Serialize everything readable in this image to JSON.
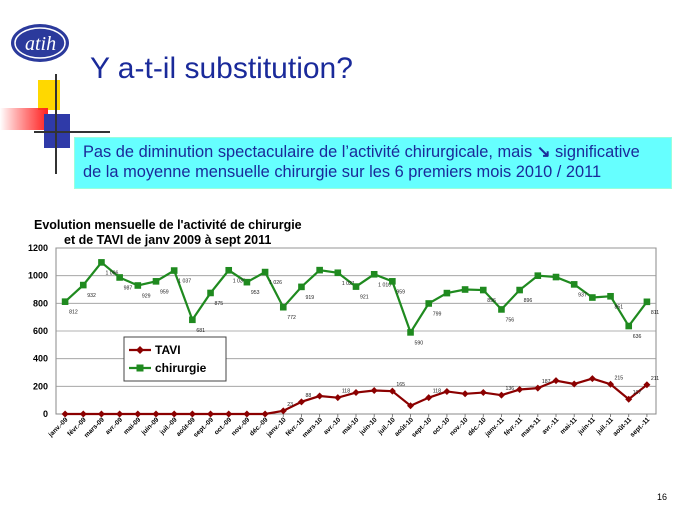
{
  "slide": {
    "title": "Y a-t-il substitution?",
    "callout_line1_a": "Pas de diminution spectaculaire de l’activité chirurgicale, mais ",
    "callout_arrow": "↘",
    "callout_line1_b": " significative",
    "callout_line2": "de la moyenne mensuelle chirurgie sur les 6 premiers mois 2010 / 2011",
    "page_number": "16",
    "logo_icon": "atih-logo",
    "colors": {
      "title": "#1a2a9a",
      "callout_bg": "#66ffff",
      "tavi": "#8b0000",
      "chirurgie": "#1f8a1f"
    }
  },
  "chart_data": {
    "type": "line",
    "title_line1": "Evolution mensuelle de l'activité de chirurgie",
    "title_line2": "et de TAVI de janv 2009 à sept 2011",
    "categories": [
      "janv.-09",
      "févr.-09",
      "mars-09",
      "avr.-09",
      "mai-09",
      "juin-09",
      "juil.-09",
      "août-09",
      "sept.-09",
      "oct.-09",
      "nov.-09",
      "déc.-09",
      "janv.-10",
      "févr.-10",
      "mars-10",
      "avr.-10",
      "mai-10",
      "juin-10",
      "juil.-10",
      "août-10",
      "sept.-10",
      "oct.-10",
      "nov.-10",
      "déc.-10",
      "janv.-11",
      "févr.-11",
      "mars-11",
      "avr.-11",
      "mai-11",
      "juin-11",
      "juil.-11",
      "août-11",
      "sept.-11"
    ],
    "y_ticks": [
      "0",
      "200",
      "400",
      "600",
      "800",
      "1000",
      "1200"
    ],
    "ylim": [
      0,
      1200
    ],
    "grid": true,
    "legend": "inside-left",
    "series": [
      {
        "name": "TAVI",
        "color": "#8b0000",
        "marker": "diamond",
        "values": [
          0,
          0,
          0,
          0,
          0,
          0,
          0,
          0,
          0,
          0,
          0,
          0,
          23,
          88,
          130,
          118,
          155,
          170,
          165,
          60,
          118,
          163,
          146,
          155,
          136,
          177,
          187,
          241,
          217,
          256,
          215,
          107,
          211
        ],
        "labels": [
          "",
          "",
          "",
          "",
          "",
          "",
          "",
          "",
          "",
          "",
          "",
          "",
          "23",
          "88",
          "",
          "118",
          "",
          "",
          "165",
          "",
          "118",
          "",
          "",
          "",
          "136",
          "",
          "187",
          "",
          "",
          "",
          "215",
          "107",
          "211"
        ]
      },
      {
        "name": "chirurgie",
        "color": "#1f8a1f",
        "marker": "square",
        "values": [
          812,
          932,
          1096,
          987,
          929,
          959,
          1037,
          681,
          875,
          1039,
          953,
          1026,
          772,
          919,
          1040,
          1021,
          921,
          1010,
          959,
          590,
          799,
          874,
          900,
          896,
          756,
          896,
          1000,
          990,
          937,
          842,
          851,
          636,
          811
        ],
        "labels": [
          "812",
          "932",
          "1 096",
          "987",
          "929",
          "959",
          "1 037",
          "681",
          "875",
          "1 039",
          "953",
          "1 026",
          "772",
          "919",
          "",
          "1 021",
          "921",
          "1 010",
          "959",
          "590",
          "799",
          "",
          "",
          "896",
          "756",
          "896",
          "",
          "",
          "937",
          "",
          "851",
          "636",
          "811"
        ]
      }
    ]
  }
}
